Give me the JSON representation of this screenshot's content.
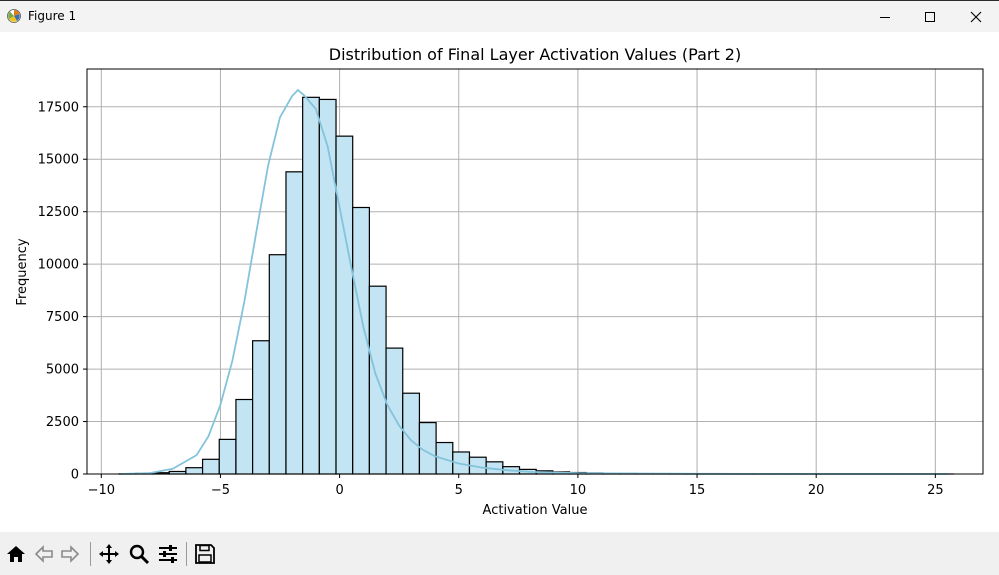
{
  "window": {
    "title": "Figure 1",
    "icons": {
      "app": "matplotlib-figure-icon",
      "minimize": "minimize-icon",
      "maximize": "maximize-icon",
      "close": "close-icon"
    }
  },
  "toolbar": {
    "buttons": [
      "home-icon",
      "back-arrow-icon",
      "forward-arrow-icon",
      "pan-move-icon",
      "zoom-magnifier-icon",
      "configure-subplots-icon",
      "save-floppy-icon"
    ]
  },
  "colors": {
    "bar_fill": "#c3e4f2",
    "bar_edge": "#000000",
    "kde_line": "#84c3dc",
    "grid": "#b0b0b0"
  },
  "chart_data": {
    "type": "bar",
    "title": "Distribution of Final Layer Activation Values (Part 2)",
    "xlabel": "Activation Value",
    "ylabel": "Frequency",
    "xlim": [
      -10.6,
      27.0
    ],
    "ylim": [
      0,
      19300
    ],
    "xticks": [
      -10,
      -5,
      0,
      5,
      10,
      15,
      20,
      25
    ],
    "xtick_labels": [
      "−10",
      "−5",
      "0",
      "5",
      "10",
      "15",
      "20",
      "25"
    ],
    "yticks": [
      0,
      2500,
      5000,
      7500,
      10000,
      12500,
      15000,
      17500
    ],
    "ytick_labels": [
      "0",
      "2500",
      "5000",
      "7500",
      "10000",
      "12500",
      "15000",
      "17500"
    ],
    "grid": true,
    "bin_start": -9.25,
    "bin_width": 0.7,
    "bin_counts": [
      10,
      30,
      60,
      120,
      300,
      700,
      1650,
      3550,
      6350,
      10450,
      14400,
      17950,
      17850,
      16100,
      12700,
      8950,
      6000,
      3850,
      2450,
      1500,
      1050,
      800,
      580,
      350,
      220,
      150,
      100,
      70,
      50,
      35,
      25,
      18,
      14,
      10,
      8,
      6,
      5,
      4,
      3,
      3,
      2,
      2,
      2,
      1,
      1,
      1,
      1,
      1,
      1,
      1
    ],
    "kde": {
      "x": [
        -9.25,
        -8.0,
        -7.0,
        -6.0,
        -5.5,
        -5.0,
        -4.5,
        -4.0,
        -3.5,
        -3.0,
        -2.5,
        -2.0,
        -1.75,
        -1.5,
        -1.0,
        -0.5,
        0.0,
        0.5,
        1.0,
        1.5,
        2.0,
        2.5,
        3.0,
        3.5,
        4.0,
        5.0,
        6.0,
        7.0,
        8.0,
        10.0,
        15.0,
        20.0,
        25.5
      ],
      "y": [
        0,
        40,
        250,
        900,
        1800,
        3300,
        5400,
        8200,
        11500,
        14700,
        17000,
        18000,
        18300,
        18050,
        17400,
        15600,
        12700,
        9800,
        7000,
        4800,
        3300,
        2300,
        1600,
        1150,
        850,
        500,
        300,
        180,
        100,
        40,
        10,
        5,
        0
      ]
    }
  }
}
